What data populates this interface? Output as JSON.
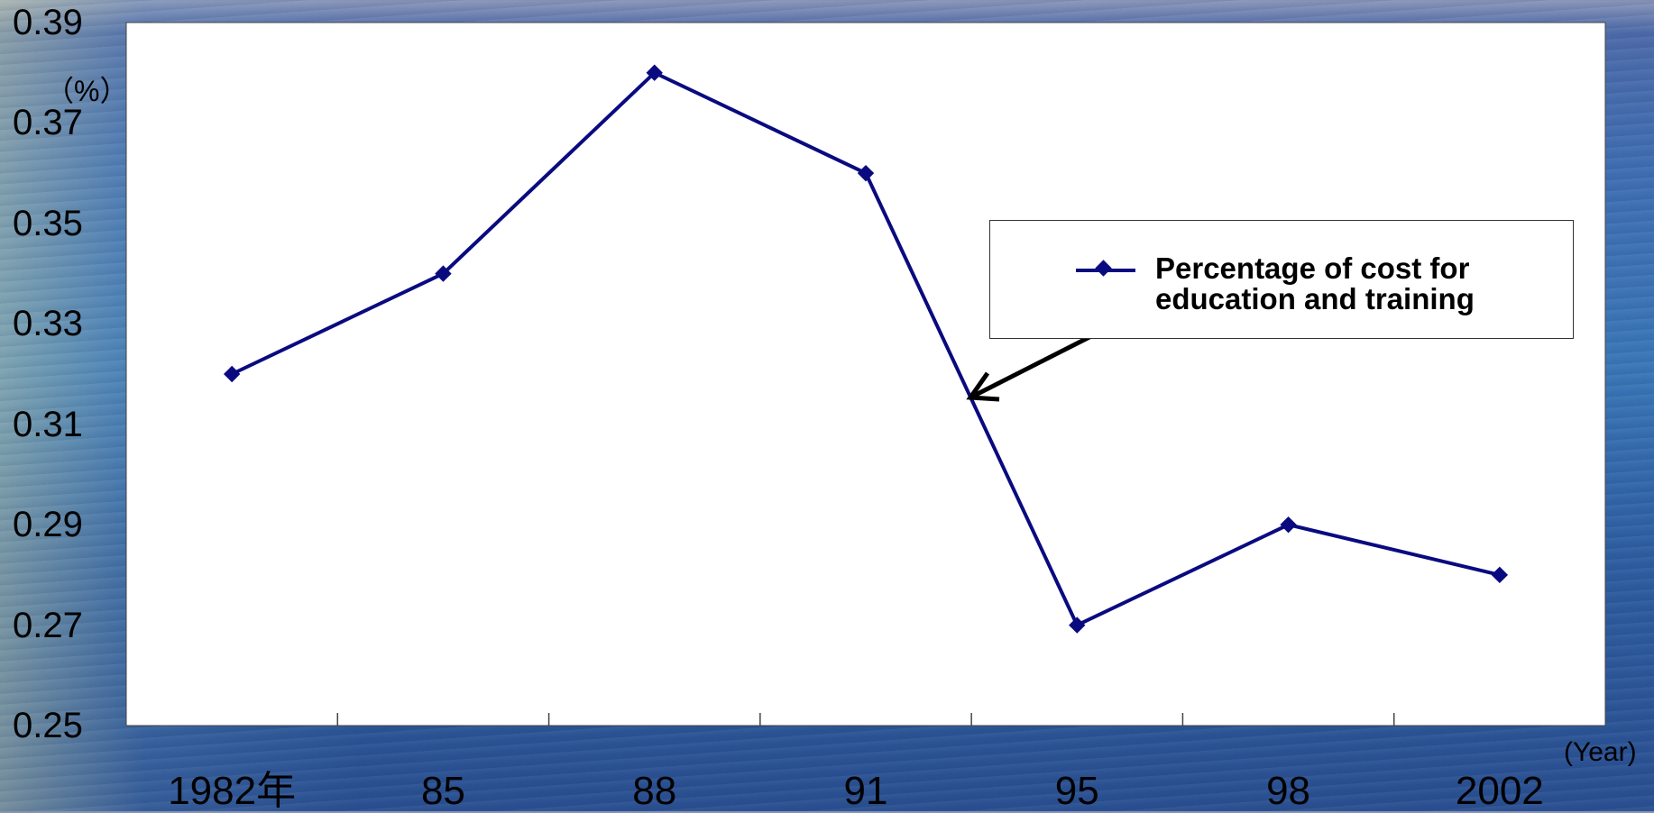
{
  "chart_data": {
    "type": "line",
    "categories": [
      "1982年",
      "85",
      "88",
      "91",
      "95",
      "98",
      "2002"
    ],
    "series": [
      {
        "name": "Percentage of cost for education and training",
        "values": [
          0.32,
          0.34,
          0.38,
          0.36,
          0.27,
          0.29,
          0.28
        ],
        "color": "#0a0a80"
      }
    ],
    "y_ticks": [
      "0.39",
      "0.37",
      "0.35",
      "0.33",
      "0.31",
      "0.29",
      "0.27",
      "0.25"
    ],
    "ylim": [
      0.25,
      0.39
    ],
    "ylabel": "（%）",
    "xlabel": "(Year)",
    "legend_lines": [
      "Percentage of cost for",
      "education and training"
    ],
    "legend_placement": "right",
    "annotation": "arrow from legend to series line",
    "grid": false
  }
}
